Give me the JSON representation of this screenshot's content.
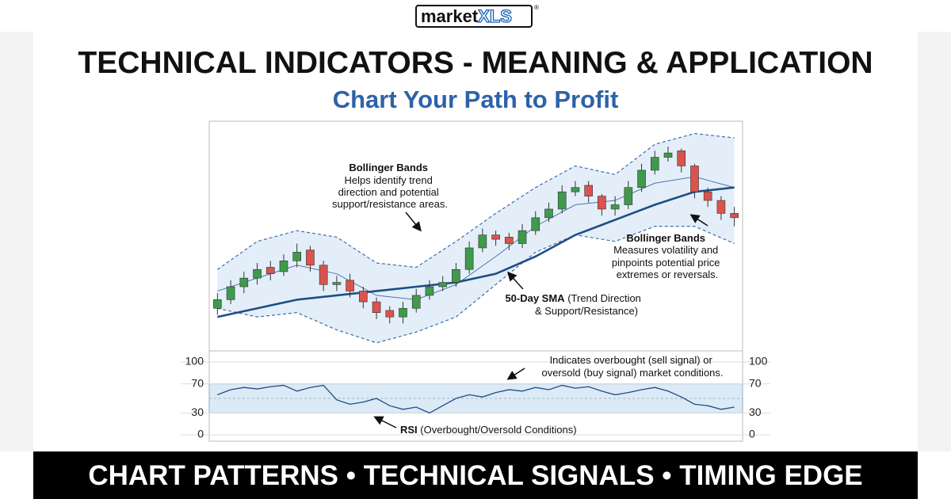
{
  "logo": {
    "text": "market",
    "accent": "XLS",
    "mark": "®"
  },
  "header": {
    "title": "TECHNICAL INDICATORS - MEANING & APPLICATION",
    "subtitle": "Chart Your Path to Profit"
  },
  "chart_data": [
    {
      "type": "candlestick",
      "ylim": [
        -5,
        100
      ],
      "up_color": "#3f9a4c",
      "down_color": "#d9534f",
      "open": [
        14,
        18,
        24,
        28,
        33,
        31,
        36,
        41,
        34,
        25,
        27,
        22,
        17,
        13,
        10,
        14,
        20,
        24,
        26,
        32,
        42,
        48,
        47,
        44,
        50,
        56,
        60,
        68,
        71,
        66,
        60,
        62,
        70,
        78,
        84,
        87,
        80,
        68,
        64,
        58
      ],
      "high": [
        21,
        27,
        31,
        35,
        36,
        39,
        44,
        43,
        36,
        29,
        30,
        24,
        19,
        15,
        17,
        23,
        27,
        29,
        35,
        45,
        51,
        50,
        49,
        53,
        59,
        63,
        71,
        73,
        73,
        67,
        66,
        73,
        81,
        87,
        89,
        88,
        81,
        70,
        66,
        61
      ],
      "low": [
        11,
        16,
        21,
        25,
        27,
        29,
        33,
        31,
        22,
        22,
        19,
        14,
        9,
        7,
        7,
        12,
        18,
        22,
        24,
        30,
        40,
        43,
        41,
        42,
        48,
        54,
        58,
        66,
        63,
        57,
        57,
        60,
        68,
        76,
        82,
        77,
        65,
        61,
        55,
        52
      ],
      "close": [
        18,
        24,
        28,
        32,
        30,
        36,
        40,
        34,
        25,
        26,
        22,
        17,
        12,
        10,
        14,
        20,
        24,
        26,
        32,
        42,
        48,
        46,
        44,
        50,
        56,
        60,
        68,
        70,
        66,
        60,
        62,
        70,
        78,
        84,
        86,
        80,
        68,
        64,
        58,
        56
      ],
      "series": [
        {
          "name": "Upper Band",
          "color": "#3b6ea5",
          "x": [
            0,
            3,
            6,
            9,
            12,
            15,
            18,
            21,
            24,
            27,
            30,
            33,
            36,
            39
          ],
          "values": [
            32,
            45,
            50,
            47,
            35,
            33,
            45,
            58,
            70,
            80,
            76,
            90,
            95,
            93
          ]
        },
        {
          "name": "Lower Band",
          "color": "#3b6ea5",
          "x": [
            0,
            3,
            6,
            9,
            12,
            15,
            18,
            21,
            24,
            27,
            30,
            33,
            36,
            39
          ],
          "values": [
            14,
            10,
            12,
            4,
            -2,
            3,
            10,
            25,
            40,
            48,
            45,
            52,
            52,
            44
          ]
        },
        {
          "name": "Middle Band",
          "color": "#4a78a8",
          "x": [
            0,
            3,
            6,
            9,
            12,
            15,
            18,
            21,
            24,
            27,
            30,
            33,
            36,
            39
          ],
          "values": [
            22,
            28,
            34,
            30,
            20,
            18,
            25,
            38,
            52,
            62,
            64,
            72,
            75,
            70
          ]
        },
        {
          "name": "50-Day SMA",
          "color": "#1f4e85",
          "x": [
            0,
            3,
            6,
            9,
            12,
            15,
            18,
            21,
            24,
            27,
            30,
            33,
            36,
            39
          ],
          "values": [
            10,
            14,
            18,
            20,
            22,
            24,
            26,
            30,
            38,
            48,
            55,
            62,
            68,
            70
          ]
        }
      ],
      "band_fill": "#e4eef9",
      "annotations": [
        {
          "title": "Bollinger Bands",
          "lines": [
            "Helps identify trend",
            "direction and potential",
            "support/resistance areas."
          ]
        },
        {
          "title": "Bollinger Bands",
          "lines": [
            "Measures volatility and",
            "pinpoints potential price",
            "extremes or reversals."
          ]
        },
        {
          "title": "50-Day SMA",
          "lines": [
            "(Trend Direction",
            "& Support/Resistance)"
          ]
        }
      ]
    },
    {
      "type": "line",
      "ylim": [
        0,
        100
      ],
      "yticks": [
        0,
        30,
        70,
        100
      ],
      "zone": [
        30,
        70
      ],
      "zone_color": "#dceaf7",
      "series": [
        {
          "name": "RSI",
          "color": "#1f4e85",
          "values": [
            55,
            62,
            65,
            63,
            66,
            68,
            60,
            65,
            68,
            48,
            42,
            45,
            50,
            40,
            35,
            38,
            30,
            40,
            50,
            55,
            52,
            58,
            62,
            60,
            65,
            62,
            68,
            64,
            66,
            60,
            55,
            58,
            62,
            65,
            60,
            52,
            42,
            40,
            35,
            38
          ]
        }
      ],
      "annotations": [
        {
          "lines": [
            "Indicates overbought (sell signal) or",
            "oversold (buy signal) market conditions."
          ]
        },
        {
          "title": "RSI",
          "lines": [
            "(Overbought/Oversold Conditions)"
          ]
        }
      ]
    }
  ],
  "footer": {
    "text": "CHART PATTERNS • TECHNICAL SIGNALS • TIMING EDGE"
  }
}
